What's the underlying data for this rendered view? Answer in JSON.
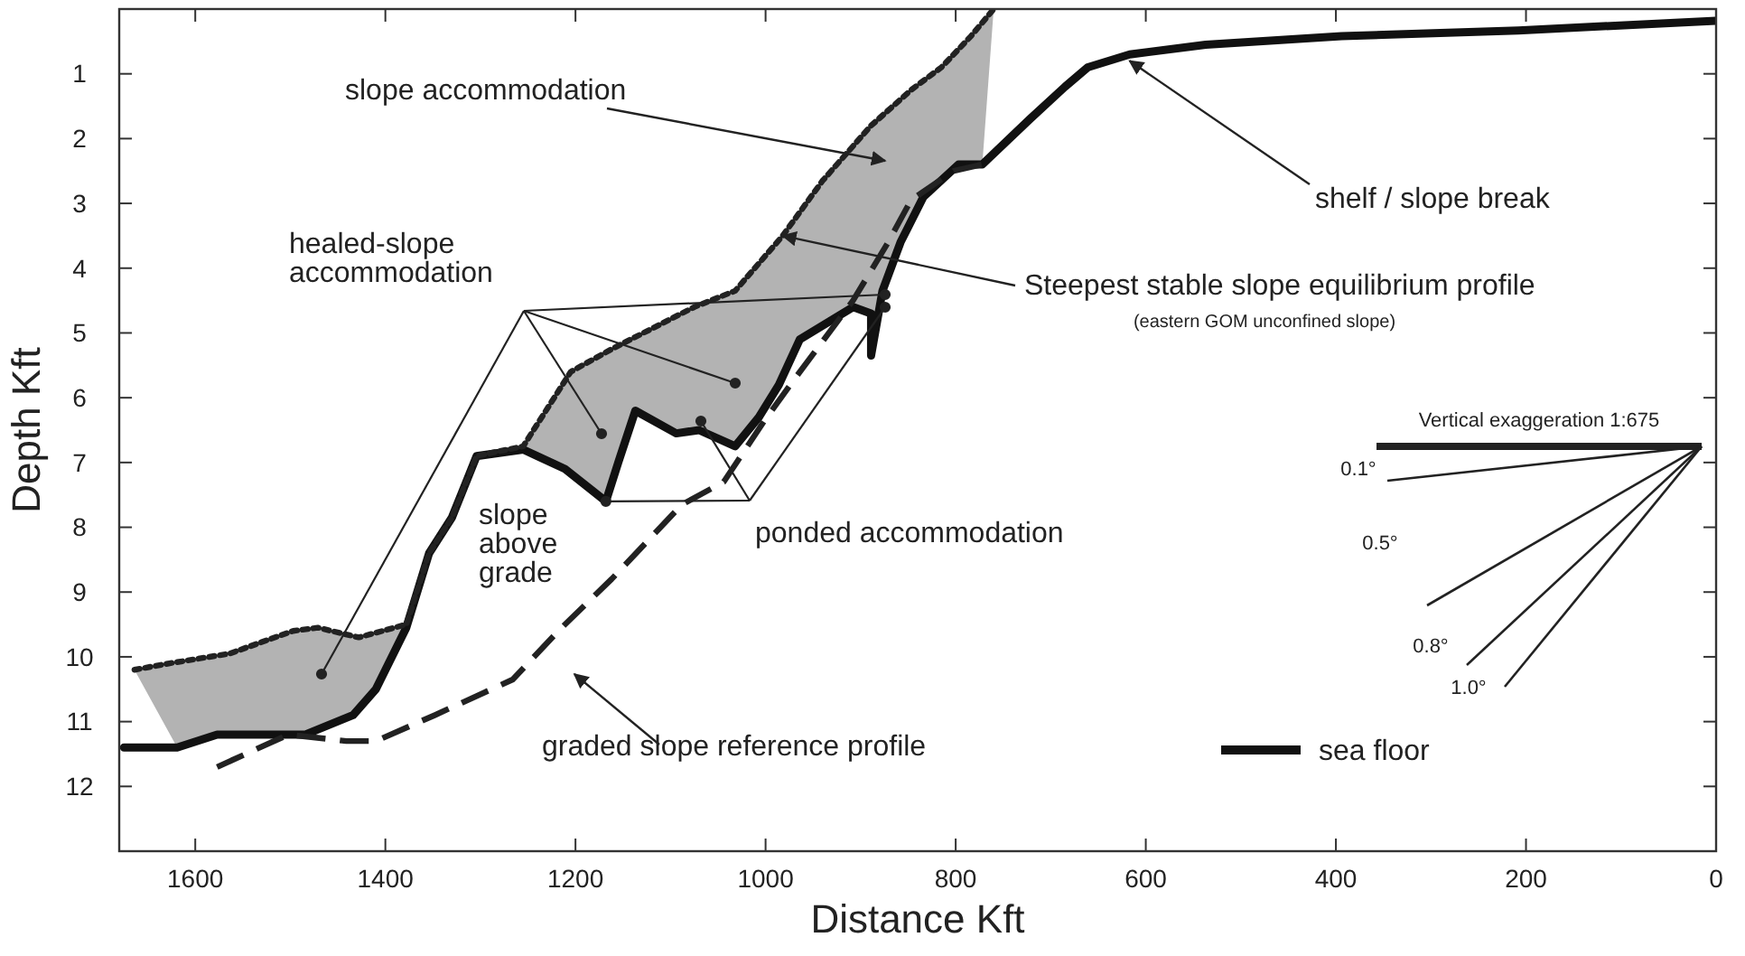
{
  "chart_data": {
    "type": "line",
    "xlabel": "Distance Kft",
    "ylabel": "Depth Kft",
    "xlim": [
      1680,
      0
    ],
    "xticks": [
      1600,
      1400,
      1200,
      1000,
      800,
      600,
      400,
      200,
      0
    ],
    "ylim": [
      13,
      0
    ],
    "yticks": [
      1,
      2,
      3,
      4,
      5,
      6,
      7,
      8,
      9,
      10,
      11,
      12
    ],
    "grid": false,
    "legend": "bottom right",
    "series": [
      {
        "name": "sea floor",
        "color": "#111111",
        "line_style": "solid",
        "x": [
          1675,
          1619,
          1577,
          1484,
          1434,
          1410,
          1378,
          1354,
          1330,
          1304,
          1255,
          1211,
          1168,
          1155,
          1137,
          1094,
          1070,
          1032,
          1007,
          986,
          964,
          908,
          889,
          889,
          877,
          858,
          834,
          797,
          772,
          722,
          685,
          661,
          617,
          537,
          394,
          208,
          0
        ],
        "values": [
          11.4,
          11.4,
          11.2,
          11.2,
          10.9,
          10.5,
          9.55,
          8.4,
          7.85,
          6.9,
          6.8,
          7.1,
          7.6,
          7.0,
          6.2,
          6.55,
          6.5,
          6.75,
          6.3,
          5.8,
          5.1,
          4.6,
          4.7,
          5.35,
          4.35,
          3.6,
          2.9,
          2.4,
          2.4,
          1.7,
          1.2,
          0.9,
          0.7,
          0.55,
          0.42,
          0.33,
          0.18
        ]
      },
      {
        "color": "#222222",
        "line_style": "dotted",
        "x": [
          1664,
          1627,
          1564,
          1497,
          1471,
          1428,
          1378,
          1354,
          1330,
          1304,
          1255,
          1205,
          1162,
          1075,
          1032,
          982,
          940,
          889,
          847,
          815,
          784,
          760
        ],
        "values": [
          10.2,
          10.1,
          9.95,
          9.6,
          9.55,
          9.7,
          9.5,
          8.4,
          7.85,
          6.9,
          6.75,
          5.6,
          5.25,
          4.6,
          4.35,
          3.5,
          2.65,
          1.8,
          1.25,
          0.9,
          0.42,
          0
        ]
      },
      {
        "color": "#222222",
        "line_style": "dashed",
        "x": [
          1577,
          1502,
          1441,
          1410,
          1348,
          1266,
          1218,
          1162,
          1088,
          1044,
          1001,
          969,
          908,
          871,
          847,
          802,
          772
        ],
        "values": [
          11.7,
          11.2,
          11.3,
          11.3,
          10.9,
          10.35,
          9.6,
          8.8,
          7.65,
          7.3,
          6.35,
          5.7,
          4.5,
          3.6,
          2.95,
          2.5,
          2.4
        ]
      }
    ],
    "annotations": [
      "slope accommodation",
      "healed-slope accommodation",
      {
        "text": "Steepest stable slope equilibrium profile",
        "x": 982,
        "y": 3.5
      },
      "(eastern GOM unconfined slope)",
      {
        "text": "shelf / slope break",
        "x": 617,
        "y": 0.8
      },
      {
        "text": "ponded accommodation",
        "x": 1168,
        "y": 7.6
      },
      "slope above grade",
      "graded slope reference profile",
      "Vertical exaggeration 1:675",
      "0.1°",
      "0.5°",
      "0.8°",
      "1.0°"
    ]
  }
}
